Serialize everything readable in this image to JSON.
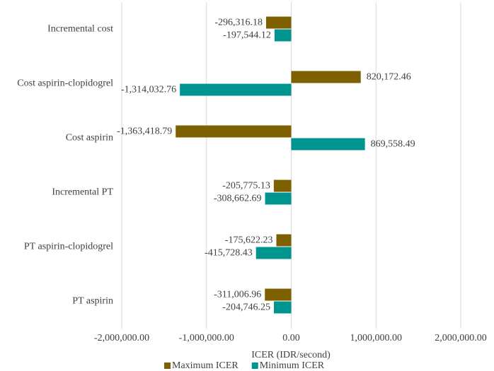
{
  "chart_data": {
    "type": "hbar",
    "x_label": "ICER (IDR/second)",
    "categories": [
      "Incremental cost",
      "Cost aspirin-clopidogrel",
      "Cost aspirin",
      "Incremental PT",
      "PT aspirin-clopidogrel",
      "PT aspirin"
    ],
    "series": [
      {
        "name": "Maximum ICER",
        "color": "#7f6000",
        "values": [
          -296316.18,
          820172.46,
          -1363418.79,
          -205775.13,
          -175622.23,
          -311006.96
        ],
        "value_labels": [
          "-296,316.18",
          "820,172.46",
          "-1,363,418.79",
          "-205,775.13",
          "-175,622.23",
          "-311,006.96"
        ]
      },
      {
        "name": "Minimum ICER",
        "color": "#009490",
        "values": [
          -197544.12,
          -1314032.76,
          869558.49,
          -308662.69,
          -415728.43,
          -204746.25
        ],
        "value_labels": [
          "-197,544.12",
          "-1,314,032.76",
          "869,558.49",
          "-308,662.69",
          "-415,728.43",
          "-204,746.25"
        ]
      }
    ],
    "xlim": [
      -2000000,
      2000000
    ],
    "xticks": [
      {
        "value": -2000000,
        "label": "-2,000,000.00"
      },
      {
        "value": -1000000,
        "label": "-1,000,000.00"
      },
      {
        "value": 0,
        "label": "0.00"
      },
      {
        "value": 1000000,
        "label": "1,000,000.00"
      },
      {
        "value": 2000000,
        "label": "2,000,000.00"
      }
    ],
    "grid": true,
    "legend": "bottom"
  }
}
